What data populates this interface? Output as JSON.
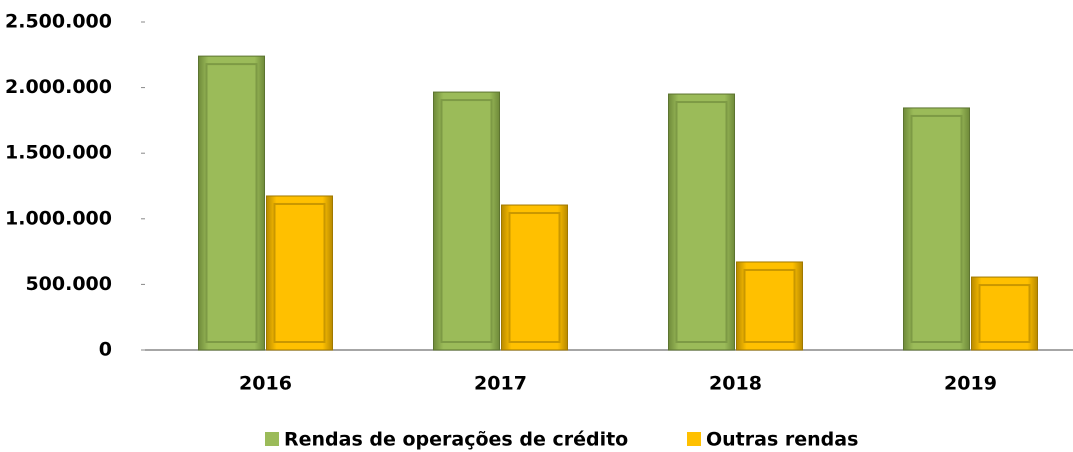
{
  "chart_data": {
    "type": "bar",
    "categories": [
      "2016",
      "2017",
      "2018",
      "2019"
    ],
    "series": [
      {
        "name": "Rendas de operações de crédito",
        "color": "#9bbb59",
        "values": [
          2240000,
          1966000,
          1951000,
          1845000
        ]
      },
      {
        "name": "Outras rendas",
        "color": "#ffc000",
        "values": [
          1174000,
          1105000,
          671000,
          556000
        ]
      }
    ],
    "ylim": [
      0,
      2500000
    ],
    "yticks": [
      0,
      {
        "value": 500000,
        "label": "500.000"
      },
      {
        "value": 1000000,
        "label": "1.000.000"
      },
      {
        "value": 1500000,
        "label": "1.500.000"
      },
      {
        "value": 2000000,
        "label": "2.000.000"
      },
      {
        "value": 2500000,
        "label": "2.500.000"
      }
    ],
    "legend": "bottom"
  }
}
